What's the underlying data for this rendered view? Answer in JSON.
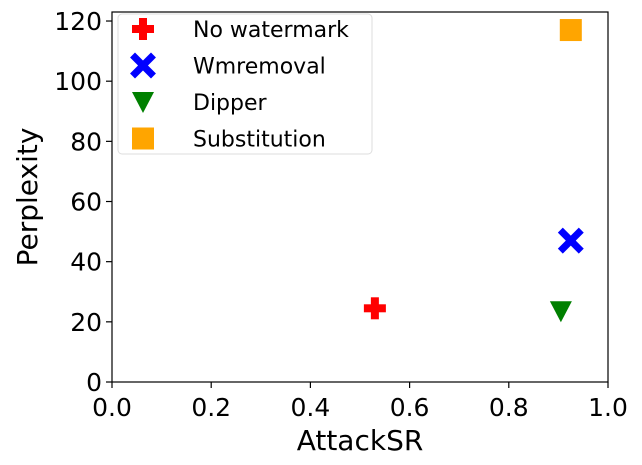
{
  "chart_data": {
    "type": "scatter",
    "title": "",
    "xlabel": "AttackSR",
    "ylabel": "Perplexity",
    "xlim": [
      0.0,
      1.0
    ],
    "ylim": [
      0,
      123
    ],
    "xticks": [
      "0.0",
      "0.2",
      "0.4",
      "0.6",
      "0.8",
      "1.0"
    ],
    "yticks": [
      "0",
      "20",
      "40",
      "60",
      "80",
      "100",
      "120"
    ],
    "grid": false,
    "legend_position": "top-left",
    "series": [
      {
        "name": "No watermark",
        "marker": "plus",
        "color": "#ff0000",
        "points": [
          {
            "x": 0.53,
            "y": 24.5
          }
        ]
      },
      {
        "name": "Wmremoval",
        "marker": "x",
        "color": "#0000ff",
        "points": [
          {
            "x": 0.925,
            "y": 47
          }
        ]
      },
      {
        "name": "Dipper",
        "marker": "triangle-down",
        "color": "#008000",
        "points": [
          {
            "x": 0.905,
            "y": 23.5
          }
        ]
      },
      {
        "name": "Substitution",
        "marker": "square",
        "color": "#ffa500",
        "points": [
          {
            "x": 0.925,
            "y": 117
          }
        ]
      }
    ]
  }
}
